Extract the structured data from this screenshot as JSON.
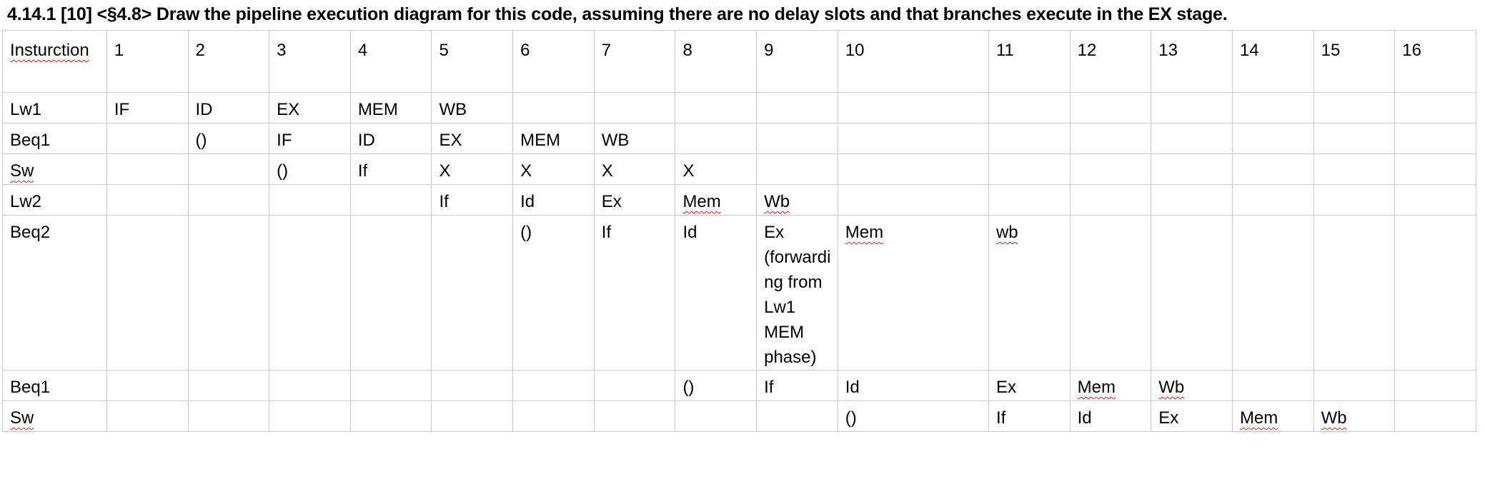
{
  "question": "4.14.1 [10] <§4.8> Draw the pipeline execution diagram for this code, assuming there are no delay slots and that branches execute in the EX stage.",
  "table": {
    "header": [
      "Insturction",
      "1",
      "2",
      "3",
      "4",
      "5",
      "6",
      "7",
      "8",
      "9",
      "10",
      "11",
      "12",
      "13",
      "14",
      "15",
      "16"
    ],
    "rows": [
      {
        "name": "Lw1",
        "cells": [
          "IF",
          "ID",
          "EX",
          "MEM",
          "WB",
          "",
          "",
          "",
          "",
          "",
          "",
          "",
          "",
          "",
          "",
          ""
        ]
      },
      {
        "name": "Beq1",
        "cells": [
          "",
          "()",
          "IF",
          "ID",
          "EX",
          "MEM",
          "WB",
          "",
          "",
          "",
          "",
          "",
          "",
          "",
          "",
          ""
        ]
      },
      {
        "name": "Sw",
        "cells": [
          "",
          "",
          "()",
          "If",
          "X",
          "X",
          "X",
          "X",
          "",
          "",
          "",
          "",
          "",
          "",
          "",
          ""
        ]
      },
      {
        "name": "Lw2",
        "cells": [
          "",
          "",
          "",
          "",
          "If",
          "Id",
          "Ex",
          "Mem",
          "Wb",
          "",
          "",
          "",
          "",
          "",
          "",
          ""
        ]
      },
      {
        "name": "Beq2",
        "cells": [
          "",
          "",
          "",
          "",
          "",
          "()",
          "If",
          "Id",
          "Ex (forwarding from Lw1 MEM phase)",
          "Mem",
          "wb",
          "",
          "",
          "",
          "",
          ""
        ]
      },
      {
        "name": "Beq1",
        "cells": [
          "",
          "",
          "",
          "",
          "",
          "",
          "",
          "()",
          "If",
          "Id",
          "Ex",
          "Mem",
          "Wb",
          "",
          "",
          ""
        ]
      },
      {
        "name": "Sw",
        "cells": [
          "",
          "",
          "",
          "",
          "",
          "",
          "",
          "",
          "",
          "()",
          "If",
          "Id",
          "Ex",
          "Mem",
          "Wb",
          ""
        ]
      }
    ]
  }
}
